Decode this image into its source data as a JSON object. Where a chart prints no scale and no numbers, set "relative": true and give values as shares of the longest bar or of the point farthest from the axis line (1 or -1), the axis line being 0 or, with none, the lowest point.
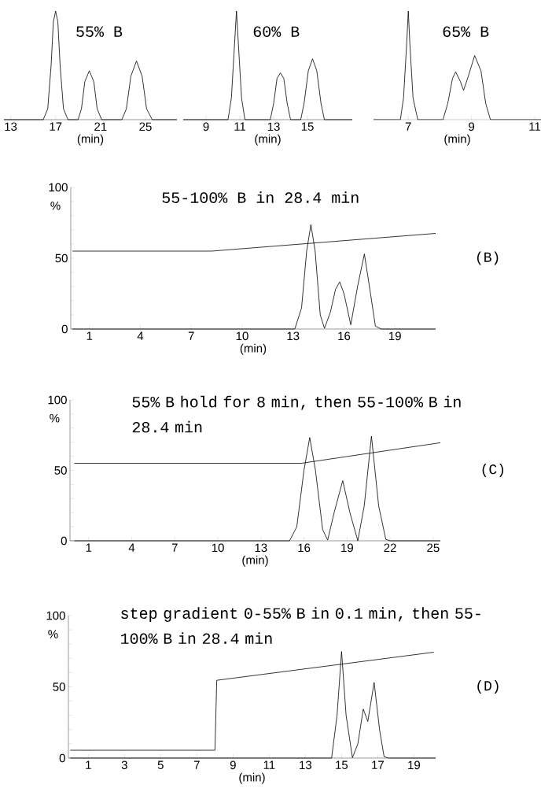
{
  "chart_data": [
    {
      "type": "line",
      "relative": true,
      "title": "55% B",
      "xlabel": "(min)",
      "xlim": [
        12.4,
        27.8
      ],
      "xticks": [
        13,
        17,
        21,
        25
      ],
      "series": [
        {
          "color": "#000000",
          "x": [
            12.4,
            15.9,
            16.3,
            16.6,
            16.8,
            17.0,
            17.2,
            17.4,
            17.7,
            18.1,
            19.0,
            19.3,
            19.6,
            20.0,
            20.4,
            20.7,
            21.1,
            22.9,
            23.3,
            23.7,
            24.2,
            24.7,
            25.1,
            25.6,
            27.8
          ],
          "values": [
            0,
            0,
            0.1,
            0.5,
            0.9,
            1,
            0.9,
            0.5,
            0.1,
            0,
            0,
            0.1,
            0.35,
            0.45,
            0.35,
            0.1,
            0,
            0,
            0.1,
            0.4,
            0.54,
            0.4,
            0.1,
            0,
            0
          ]
        }
      ]
    },
    {
      "type": "line",
      "relative": true,
      "title": "60% B",
      "xlabel": "(min)",
      "xlim": [
        7.65,
        17.65
      ],
      "xticks": [
        9,
        11,
        13,
        15
      ],
      "series": [
        {
          "color": "#000000",
          "x": [
            7.65,
            10.3,
            10.5,
            10.65,
            10.8,
            10.95,
            11.1,
            11.3,
            12.8,
            13.0,
            13.2,
            13.4,
            13.6,
            13.8,
            14.0,
            14.6,
            14.8,
            15.05,
            15.3,
            15.55,
            15.8,
            16.0,
            17.65
          ],
          "values": [
            0,
            0,
            0.2,
            0.6,
            1,
            0.6,
            0.2,
            0,
            0,
            0.15,
            0.38,
            0.43,
            0.38,
            0.15,
            0,
            0,
            0.15,
            0.45,
            0.56,
            0.45,
            0.15,
            0,
            0
          ]
        }
      ]
    },
    {
      "type": "line",
      "relative": true,
      "title": "65% B",
      "xlabel": "(min)",
      "xlim": [
        5.9,
        11.2
      ],
      "xticks": [
        7,
        9,
        11
      ],
      "series": [
        {
          "color": "#000000",
          "x": [
            5.9,
            6.75,
            6.85,
            6.95,
            7.0,
            7.05,
            7.15,
            7.3,
            8.1,
            8.25,
            8.4,
            8.5,
            8.65,
            8.75,
            8.9,
            9.1,
            9.3,
            9.45,
            9.6,
            11.2
          ],
          "values": [
            0,
            0,
            0.2,
            0.7,
            1,
            0.7,
            0.2,
            0,
            0,
            0.15,
            0.38,
            0.44,
            0.35,
            0.27,
            0.4,
            0.59,
            0.45,
            0.15,
            0,
            0
          ]
        }
      ]
    },
    {
      "type": "line",
      "title": "55-100% B in 28.4 min",
      "xlabel": "(min)",
      "ylabel": "%",
      "annotations": [
        "(B)"
      ],
      "xlim": [
        -0.1,
        21.4
      ],
      "xticks": [
        1,
        4,
        7,
        10,
        13,
        16,
        19
      ],
      "ylim": [
        0,
        100
      ],
      "yticks": [
        0,
        {
          "value": 10,
          "label": null
        },
        {
          "value": 20,
          "label": null
        },
        {
          "value": 30,
          "label": null
        },
        {
          "value": 40,
          "label": null
        },
        50,
        {
          "value": 60,
          "label": null
        },
        {
          "value": 70,
          "label": null
        },
        {
          "value": 80,
          "label": null
        },
        {
          "value": 90,
          "label": null
        },
        100
      ],
      "series": [
        {
          "color": "#000000",
          "x": [
            0,
            13.1,
            13.5,
            13.8,
            14.05,
            14.3,
            14.6,
            14.85,
            15.2,
            15.5,
            15.75,
            16.0,
            16.4,
            16.8,
            17.2,
            17.5,
            17.85,
            18.2,
            21.4
          ],
          "values": [
            0,
            0,
            15,
            55,
            73.7,
            55,
            10,
            0.5,
            12,
            28,
            33.3,
            25,
            3,
            30,
            53,
            30,
            2,
            0,
            0
          ]
        },
        {
          "color": "#000000",
          "x": [
            0,
            8.2,
            21.4
          ],
          "values": [
            55,
            55,
            67.5
          ]
        }
      ]
    },
    {
      "type": "line",
      "title": "55% B hold for 8 min, then 55-100% B in 28.4 min",
      "xlabel": "(min)",
      "ylabel": "%",
      "annotations": [
        "(C)"
      ],
      "xlim": [
        -0.3,
        25.5
      ],
      "xticks": [
        1,
        4,
        7,
        10,
        13,
        16,
        19,
        22,
        25
      ],
      "ylim": [
        0,
        100
      ],
      "yticks": [
        0,
        {
          "value": 10,
          "label": null
        },
        {
          "value": 20,
          "label": null
        },
        {
          "value": 30,
          "label": null
        },
        {
          "value": 40,
          "label": null
        },
        50,
        {
          "value": 60,
          "label": null
        },
        {
          "value": 70,
          "label": null
        },
        {
          "value": 80,
          "label": null
        },
        {
          "value": 90,
          "label": null
        },
        100
      ],
      "series": [
        {
          "color": "#000000",
          "x": [
            0,
            15.0,
            15.5,
            16.0,
            16.4,
            16.8,
            17.3,
            17.65,
            18.1,
            18.7,
            19.2,
            19.75,
            20.2,
            20.7,
            21.2,
            21.7,
            22.0,
            25.5
          ],
          "values": [
            0,
            0,
            10,
            50,
            73.3,
            50,
            8,
            0.5,
            20,
            42.7,
            20,
            0,
            25,
            74.3,
            25,
            1,
            0,
            0
          ]
        },
        {
          "color": "#000000",
          "x": [
            0,
            15.8,
            25.5
          ],
          "values": [
            55,
            55,
            69.6
          ]
        }
      ]
    },
    {
      "type": "line",
      "title": "step gradient 0-55% B in 0.1 min, then 55-100% B in 28.4 min",
      "xlabel": "(min)",
      "ylabel": "%",
      "annotations": [
        "(D)"
      ],
      "xlim": [
        -0.1,
        20.2
      ],
      "xticks": [
        1,
        3,
        5,
        7,
        9,
        11,
        13,
        15,
        17,
        19
      ],
      "ylim": [
        0,
        100
      ],
      "yticks": [
        0,
        {
          "value": 10,
          "label": null
        },
        {
          "value": 20,
          "label": null
        },
        {
          "value": 30,
          "label": null
        },
        {
          "value": 40,
          "label": null
        },
        50,
        {
          "value": 60,
          "label": null
        },
        {
          "value": 70,
          "label": null
        },
        {
          "value": 80,
          "label": null
        },
        {
          "value": 90,
          "label": null
        },
        100
      ],
      "series": [
        {
          "color": "#000000",
          "x": [
            0,
            14.45,
            14.75,
            15.0,
            15.25,
            15.6,
            15.9,
            16.2,
            16.45,
            16.8,
            17.1,
            17.35,
            17.6,
            20.2
          ],
          "values": [
            0,
            0,
            30,
            74.8,
            30,
            0.3,
            10,
            34.4,
            25.7,
            53.1,
            20,
            1,
            0,
            0
          ]
        },
        {
          "color": "#000000",
          "x": [
            0,
            8.0,
            8.1,
            20.1
          ],
          "values": [
            5.5,
            5.5,
            54.6,
            74.3
          ]
        }
      ]
    }
  ]
}
